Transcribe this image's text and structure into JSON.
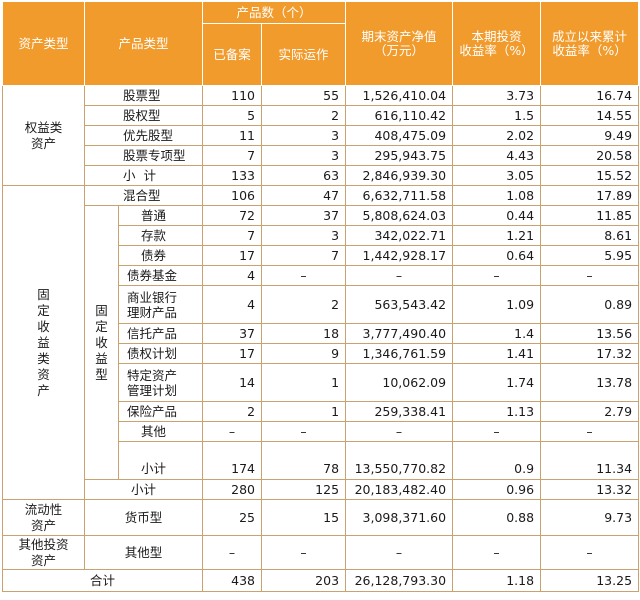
{
  "header": {
    "asset_type": "资产类型",
    "product_type": "产品类型",
    "product_count": "产品数（个）",
    "registered": "已备案",
    "operating": "实际运作",
    "net_assets_l1": "期末资产净值",
    "net_assets_l2": "（万元）",
    "period_return_l1": "本期投资",
    "period_return_l2": "收益率（%）",
    "cumulative_return_l1": "成立以来累计",
    "cumulative_return_l2": "收益率（%）"
  },
  "equity": {
    "label_l1": "权益类",
    "label_l2": "资产",
    "rows": [
      {
        "type": "股票型",
        "registered": "110",
        "operating": "55",
        "net_assets": "1,526,410.04",
        "period_return": "3.73",
        "cumulative_return": "16.74"
      },
      {
        "type": "股权型",
        "registered": "5",
        "operating": "2",
        "net_assets": "616,110.42",
        "period_return": "1.5",
        "cumulative_return": "14.55"
      },
      {
        "type": "优先股型",
        "registered": "11",
        "operating": "3",
        "net_assets": "408,475.09",
        "period_return": "2.02",
        "cumulative_return": "9.49"
      },
      {
        "type": "股票专项型",
        "registered": "7",
        "operating": "3",
        "net_assets": "295,943.75",
        "period_return": "4.43",
        "cumulative_return": "20.58"
      }
    ],
    "subtotal": {
      "label": "小计",
      "registered": "133",
      "operating": "63",
      "net_assets": "2,846,939.30",
      "period_return": "3.05",
      "cumulative_return": "15.52"
    }
  },
  "fixed": {
    "label_chars": [
      "固",
      "定",
      "收",
      "益",
      "类",
      "资",
      "产"
    ],
    "mixed": {
      "type": "混合型",
      "registered": "106",
      "operating": "47",
      "net_assets": "6,632,711.58",
      "period_return": "1.08",
      "cumulative_return": "17.89"
    },
    "fixed_income_label_chars": [
      "固",
      "定",
      "收",
      "益",
      "型"
    ],
    "rows": [
      {
        "type": "普通",
        "registered": "72",
        "operating": "37",
        "net_assets": "5,808,624.03",
        "period_return": "0.44",
        "cumulative_return": "11.85"
      },
      {
        "type": "存款",
        "registered": "7",
        "operating": "3",
        "net_assets": "342,022.71",
        "period_return": "1.21",
        "cumulative_return": "8.61"
      },
      {
        "type": "债券",
        "registered": "17",
        "operating": "7",
        "net_assets": "1,442,928.17",
        "period_return": "0.64",
        "cumulative_return": "5.95"
      },
      {
        "type": "债券基金",
        "registered": "4",
        "operating": "–",
        "net_assets": "–",
        "period_return": "–",
        "cumulative_return": "–"
      },
      {
        "type_l1": "商业银行",
        "type_l2": "理财产品",
        "registered": "4",
        "operating": "2",
        "net_assets": "563,543.42",
        "period_return": "1.09",
        "cumulative_return": "0.89"
      },
      {
        "type": "信托产品",
        "registered": "37",
        "operating": "18",
        "net_assets": "3,777,490.40",
        "period_return": "1.4",
        "cumulative_return": "13.56"
      },
      {
        "type": "债权计划",
        "registered": "17",
        "operating": "9",
        "net_assets": "1,346,761.59",
        "period_return": "1.41",
        "cumulative_return": "17.32"
      },
      {
        "type_l1": "特定资产",
        "type_l2": "管理计划",
        "registered": "14",
        "operating": "1",
        "net_assets": "10,062.09",
        "period_return": "1.74",
        "cumulative_return": "13.78"
      },
      {
        "type": "保险产品",
        "registered": "2",
        "operating": "1",
        "net_assets": "259,338.41",
        "period_return": "1.13",
        "cumulative_return": "2.79"
      },
      {
        "type": "其他",
        "registered": "–",
        "operating": "–",
        "net_assets": "–",
        "period_return": "–",
        "cumulative_return": "–"
      }
    ],
    "inner_subtotal": {
      "label": "小计",
      "registered": "174",
      "operating": "78",
      "net_assets": "13,550,770.82",
      "period_return": "0.9",
      "cumulative_return": "11.34"
    },
    "subtotal": {
      "label": "小计",
      "registered": "280",
      "operating": "125",
      "net_assets": "20,183,482.40",
      "period_return": "0.96",
      "cumulative_return": "13.32"
    }
  },
  "liquidity": {
    "label_l1": "流动性",
    "label_l2": "资产",
    "row": {
      "type": "货币型",
      "registered": "25",
      "operating": "15",
      "net_assets": "3,098,371.60",
      "period_return": "0.88",
      "cumulative_return": "9.73"
    }
  },
  "other": {
    "label_l1": "其他投资",
    "label_l2": "资产",
    "row": {
      "type": "其他型",
      "registered": "–",
      "operating": "–",
      "net_assets": "–",
      "period_return": "–",
      "cumulative_return": "–"
    }
  },
  "total": {
    "label": "合计",
    "registered": "438",
    "operating": "203",
    "net_assets": "26,128,793.30",
    "period_return": "1.18",
    "cumulative_return": "13.25"
  }
}
